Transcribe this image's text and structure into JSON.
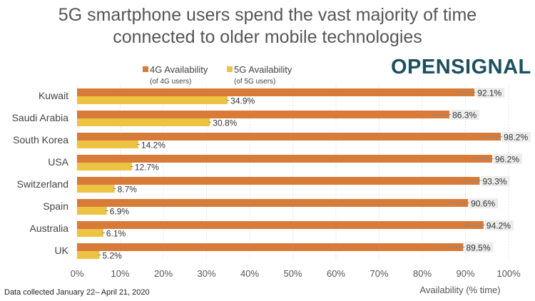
{
  "title_line1": "5G smartphone users spend the vast majority of time",
  "title_line2": "connected to older mobile technologies",
  "logo": "OPENSIGNAL",
  "footnote": "Data collected January 22– April 21, 2020",
  "colors": {
    "4g": "#d97b38",
    "5g": "#ecc342",
    "logo": "#1d4f5e"
  },
  "chart_data": {
    "type": "bar",
    "orientation": "horizontal",
    "categories": [
      "Kuwait",
      "Saudi Arabia",
      "South Korea",
      "USA",
      "Switzerland",
      "Spain",
      "Australia",
      "UK"
    ],
    "series": [
      {
        "name": "4G Availability",
        "subname": "(of 4G users)",
        "values": [
          92.1,
          86.3,
          98.2,
          96.2,
          93.3,
          90.6,
          94.2,
          89.5
        ]
      },
      {
        "name": "5G Availability",
        "subname": "(of 5G users)",
        "values": [
          34.9,
          30.8,
          14.2,
          12.7,
          8.7,
          6.9,
          6.1,
          5.2
        ]
      }
    ],
    "xlabel": "Availability (% time)",
    "xlim": [
      0,
      100
    ],
    "xticks": [
      "0%",
      "10%",
      "20%",
      "30%",
      "40%",
      "50%",
      "60%",
      "70%",
      "80%",
      "90%",
      "100%"
    ],
    "grid": true,
    "legend": "top"
  }
}
